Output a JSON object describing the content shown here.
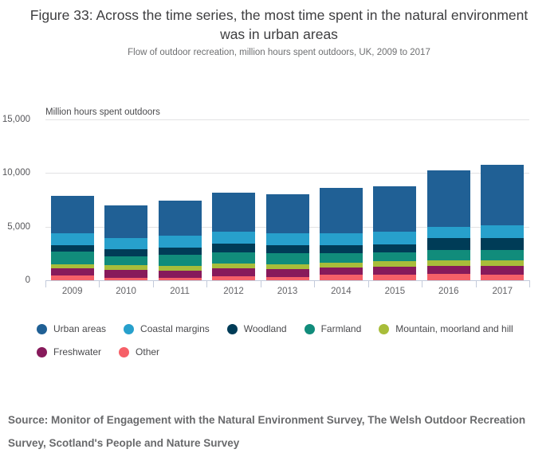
{
  "figure": {
    "title": "Figure 33: Across the time series, the most time spent in the natural environment was in urban areas",
    "subtitle": "Flow of outdoor recreation, million hours spent outdoors, UK, 2009 to 2017",
    "source": "Source: Monitor of Engagement with the Natural Environment Survey, The Welsh Outdoor Recreation Survey, Scotland's People and Nature Survey"
  },
  "chart_data": {
    "type": "bar",
    "stacked": true,
    "ylabel": "Million hours spent outdoors",
    "xlabel": "",
    "categories": [
      "2009",
      "2010",
      "2011",
      "2012",
      "2013",
      "2014",
      "2015",
      "2016",
      "2017"
    ],
    "series": [
      {
        "name": "Urban areas",
        "color": "#206095",
        "values": [
          3450,
          3050,
          3300,
          3650,
          3700,
          4250,
          4250,
          5300,
          5700
        ]
      },
      {
        "name": "Coastal margins",
        "color": "#27a0cc",
        "values": [
          1100,
          1050,
          1100,
          1100,
          1050,
          1100,
          1200,
          1050,
          1150
        ]
      },
      {
        "name": "Woodland",
        "color": "#003c57",
        "values": [
          650,
          650,
          700,
          800,
          800,
          800,
          750,
          1100,
          1100
        ]
      },
      {
        "name": "Farmland",
        "color": "#118c7b",
        "values": [
          1150,
          850,
          1000,
          1050,
          1000,
          850,
          850,
          950,
          1000
        ]
      },
      {
        "name": "Mountain, moorland and hill",
        "color": "#a8bd3a",
        "values": [
          400,
          450,
          450,
          450,
          450,
          450,
          500,
          500,
          550
        ]
      },
      {
        "name": "Freshwater",
        "color": "#871a5b",
        "values": [
          650,
          700,
          700,
          750,
          750,
          700,
          700,
          750,
          800
        ]
      },
      {
        "name": "Other",
        "color": "#f66068",
        "values": [
          450,
          250,
          200,
          350,
          300,
          500,
          550,
          600,
          500
        ]
      }
    ],
    "totals": [
      7850,
      7000,
      7450,
      8150,
      8050,
      8650,
      8800,
      10250,
      10800
    ],
    "stack_order": "first series on top, last series at bottom",
    "ylim": [
      0,
      15000
    ],
    "y_ticks": [
      {
        "value": 0,
        "label": "0"
      },
      {
        "value": 5000,
        "label": "5,000"
      },
      {
        "value": 10000,
        "label": "10,000"
      },
      {
        "value": 15000,
        "label": "15,000"
      }
    ],
    "grid": "horizontal",
    "legend_position": "bottom-left"
  }
}
